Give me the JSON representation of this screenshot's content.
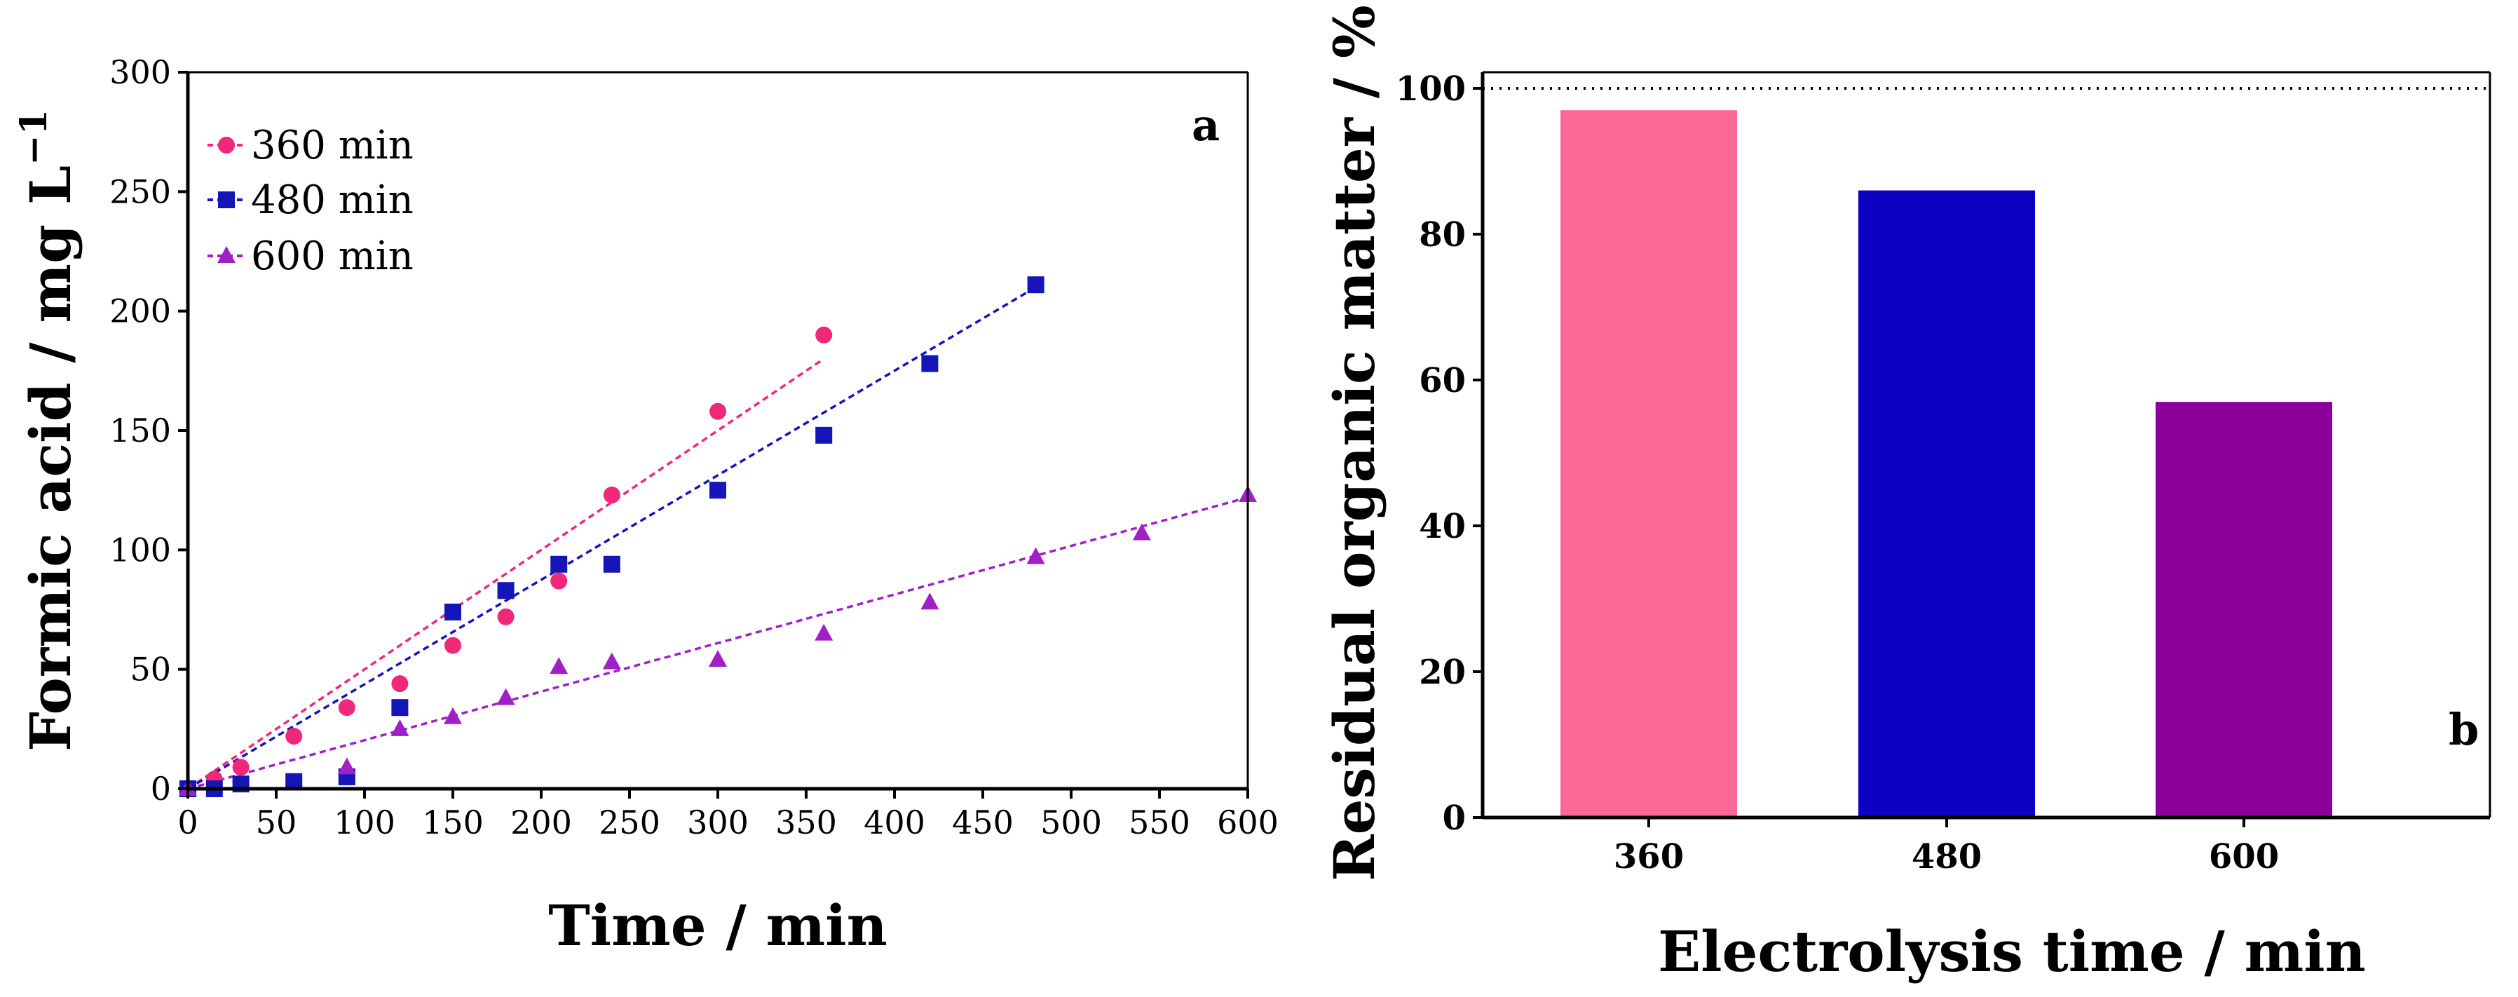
{
  "chart_data": [
    {
      "type": "scatter",
      "panel_label": "a",
      "xlabel": "Time / min",
      "ylabel": "Formic acid / mg L",
      "ylabel_sup": "−1",
      "xlim": [
        0,
        600
      ],
      "ylim": [
        0,
        300
      ],
      "xticks": [
        "0",
        "50",
        "100",
        "150",
        "200",
        "250",
        "300",
        "350",
        "400",
        "450",
        "500",
        "550",
        "600"
      ],
      "yticks": [
        "0",
        "50",
        "100",
        "150",
        "200",
        "250",
        "300"
      ],
      "legend_position": "top-left",
      "series": [
        {
          "name": "360 min",
          "marker": "circle",
          "color": "#f0287a",
          "x": [
            0,
            15,
            30,
            60,
            90,
            120,
            150,
            180,
            210,
            240,
            300,
            360
          ],
          "y": [
            0,
            4,
            9,
            22,
            34,
            44,
            60,
            72,
            87,
            123,
            158,
            190
          ],
          "fit": {
            "x": [
              0,
              360
            ],
            "y": [
              0,
              180
            ]
          }
        },
        {
          "name": "480 min",
          "marker": "square",
          "color": "#1515b8",
          "x": [
            0,
            15,
            30,
            60,
            90,
            120,
            150,
            180,
            210,
            240,
            300,
            360,
            420,
            480
          ],
          "y": [
            0,
            0,
            2,
            3,
            5,
            34,
            74,
            83,
            94,
            94,
            125,
            148,
            178,
            211
          ],
          "fit": {
            "x": [
              0,
              480
            ],
            "y": [
              0,
              210
            ]
          }
        },
        {
          "name": "600 min",
          "marker": "triangle",
          "color": "#a020c8",
          "x": [
            0,
            90,
            120,
            150,
            180,
            210,
            240,
            300,
            360,
            420,
            480,
            540,
            600
          ],
          "y": [
            0,
            9,
            25,
            30,
            38,
            51,
            53,
            54,
            65,
            78,
            97,
            107,
            123
          ],
          "fit": {
            "x": [
              0,
              600
            ],
            "y": [
              0,
              122
            ]
          }
        }
      ]
    },
    {
      "type": "bar",
      "panel_label": "b",
      "xlabel": "Electrolysis time / min",
      "ylabel": "Residual organic matter / %",
      "categories": [
        "360",
        "480",
        "600"
      ],
      "values": [
        97,
        86,
        57
      ],
      "colors": [
        "#fd6897",
        "#0c00c2",
        "#8b0099"
      ],
      "ylim": [
        0,
        100
      ],
      "yticks": [
        "0",
        "20",
        "40",
        "60",
        "80",
        "100"
      ],
      "reference_line": 100
    }
  ]
}
